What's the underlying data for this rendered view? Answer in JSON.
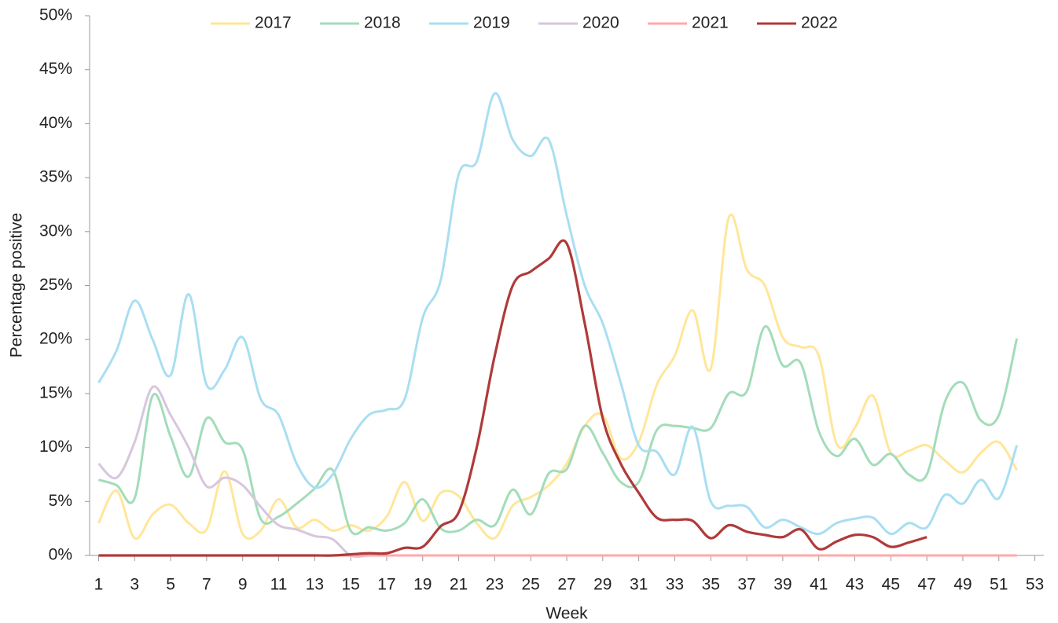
{
  "chart_data": {
    "type": "line",
    "x_label": "Week",
    "y_label": "Percentage positive",
    "x": [
      1,
      2,
      3,
      4,
      5,
      6,
      7,
      8,
      9,
      10,
      11,
      12,
      13,
      14,
      15,
      16,
      17,
      18,
      19,
      20,
      21,
      22,
      23,
      24,
      25,
      26,
      27,
      28,
      29,
      30,
      31,
      32,
      33,
      34,
      35,
      36,
      37,
      38,
      39,
      40,
      41,
      42,
      43,
      44,
      45,
      46,
      47,
      48,
      49,
      50,
      51,
      52
    ],
    "xlim": [
      0.5,
      53.5
    ],
    "xticks": [
      1,
      3,
      5,
      7,
      9,
      11,
      13,
      15,
      17,
      19,
      21,
      23,
      25,
      27,
      29,
      31,
      33,
      35,
      37,
      39,
      41,
      43,
      45,
      47,
      49,
      51,
      53
    ],
    "ylim": [
      0,
      50
    ],
    "yticks": [
      {
        "value": 0,
        "label": "0%"
      },
      {
        "value": 5,
        "label": "5%"
      },
      {
        "value": 10,
        "label": "10%"
      },
      {
        "value": 15,
        "label": "15%"
      },
      {
        "value": 20,
        "label": "20%"
      },
      {
        "value": 25,
        "label": "25%"
      },
      {
        "value": 30,
        "label": "30%"
      },
      {
        "value": 35,
        "label": "35%"
      },
      {
        "value": 40,
        "label": "40%"
      },
      {
        "value": 45,
        "label": "45%"
      },
      {
        "value": 50,
        "label": "50%"
      }
    ],
    "legend": "top",
    "series": [
      {
        "name": "2017",
        "color": "#ffe699",
        "values": [
          3,
          6,
          1.6,
          3.8,
          4.7,
          3,
          2.4,
          7.8,
          2,
          2.3,
          5.2,
          2.6,
          3.3,
          2.3,
          2.8,
          2.3,
          3.6,
          6.8,
          3.2,
          5.8,
          5.5,
          3,
          1.6,
          4.6,
          5.4,
          6.5,
          8.5,
          12,
          13,
          9,
          10.5,
          15.8,
          18.5,
          22.7,
          17.3,
          31.3,
          26.5,
          25,
          20.2,
          19.3,
          18.5,
          10.3,
          11.8,
          14.8,
          9.5,
          9.7,
          10.2,
          8.8,
          7.7,
          9.5,
          10.5,
          7.9
        ]
      },
      {
        "name": "2018",
        "color": "#a3dcb9",
        "values": [
          7,
          6.5,
          5.3,
          14.8,
          11,
          7.3,
          12.7,
          10.5,
          9.8,
          3.4,
          3.6,
          4.8,
          6.2,
          7.9,
          2.3,
          2.6,
          2.3,
          3,
          5.2,
          2.5,
          2.3,
          3.3,
          2.8,
          6.1,
          3.8,
          7.6,
          8,
          12,
          9.5,
          6.8,
          6.8,
          11.6,
          12,
          11.8,
          11.8,
          15,
          15.2,
          21.2,
          17.6,
          17.8,
          11.5,
          9.2,
          10.8,
          8.4,
          9.4,
          7.5,
          7.5,
          14.2,
          16,
          12.5,
          13,
          20.1
        ]
      },
      {
        "name": "2019",
        "color": "#a9def2",
        "values": [
          16,
          19,
          23.6,
          20,
          16.7,
          24.2,
          15.8,
          17.2,
          20.2,
          14.5,
          13,
          8.5,
          6.3,
          7.5,
          10.8,
          13,
          13.5,
          14.5,
          22,
          25.5,
          35.3,
          36.5,
          42.8,
          38.5,
          37,
          38.5,
          31.5,
          25,
          21.5,
          16,
          10.2,
          9.6,
          7.5,
          11.9,
          5,
          4.6,
          4.5,
          2.6,
          3.3,
          2.6,
          2,
          3,
          3.4,
          3.5,
          2,
          3,
          2.6,
          5.6,
          4.8,
          7,
          5.3,
          10.2
        ]
      },
      {
        "name": "2020",
        "color": "#d7c6de",
        "values": [
          8.5,
          7.2,
          10.5,
          15.6,
          13,
          10,
          6.4,
          7.2,
          6.5,
          4.5,
          2.8,
          2.4,
          1.8,
          1.5,
          0,
          0,
          0,
          0,
          0,
          0,
          0,
          0,
          0,
          0,
          0,
          0,
          0,
          0,
          0,
          0,
          0,
          0,
          0,
          0,
          0,
          0,
          0,
          0,
          0,
          0,
          0,
          0,
          0,
          0,
          0,
          0,
          0,
          0,
          0,
          0,
          0,
          0
        ]
      },
      {
        "name": "2021",
        "color": "#ffa8a8",
        "values": [
          0,
          0,
          0,
          0,
          0,
          0,
          0,
          0,
          0,
          0,
          0,
          0,
          0,
          0,
          0,
          0,
          0,
          0,
          0,
          0,
          0,
          0,
          0,
          0,
          0,
          0,
          0,
          0,
          0,
          0,
          0,
          0,
          0,
          0,
          0,
          0,
          0,
          0,
          0,
          0,
          0,
          0,
          0,
          0,
          0,
          0,
          0,
          0,
          0,
          0,
          0,
          0
        ]
      },
      {
        "name": "2022",
        "color": "#b03a3a",
        "values": [
          0,
          0,
          0,
          0,
          0,
          0,
          0,
          0,
          0,
          0,
          0,
          0,
          0,
          0,
          0.1,
          0.2,
          0.2,
          0.7,
          0.8,
          2.7,
          4,
          10,
          18.5,
          25,
          26.3,
          27.5,
          28.9,
          21.5,
          12.7,
          8.5,
          5.8,
          3.5,
          3.3,
          3.2,
          1.6,
          2.8,
          2.2,
          1.9,
          1.7,
          2.4,
          0.6,
          1.3,
          1.9,
          1.7,
          0.8,
          1.2,
          1.7,
          null,
          null,
          null,
          null,
          null
        ]
      }
    ]
  }
}
